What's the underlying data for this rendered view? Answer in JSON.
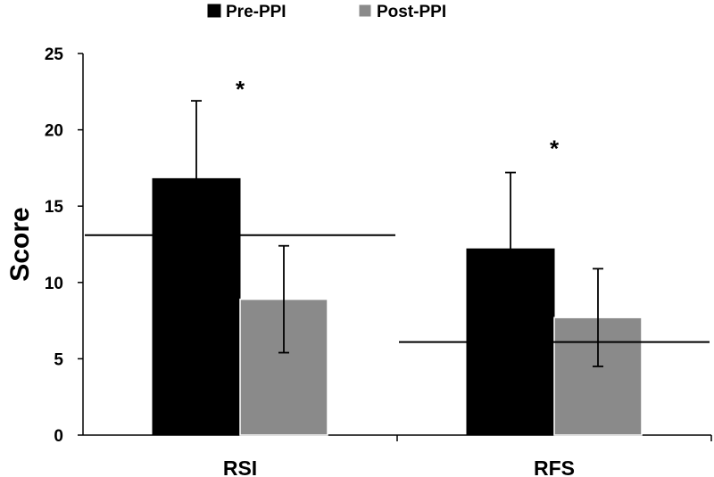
{
  "chart_data": {
    "type": "bar",
    "categories": [
      "RSI",
      "RFS"
    ],
    "series": [
      {
        "name": "Pre-PPI",
        "color": "#000000",
        "values": [
          16.8,
          12.2
        ],
        "errors": [
          5.1,
          5.0
        ]
      },
      {
        "name": "Post-PPI",
        "color": "#8a8a8a",
        "values": [
          8.9,
          7.7
        ],
        "errors": [
          3.5,
          3.2
        ]
      }
    ],
    "ylabel": "Score",
    "xlabel": "",
    "ylim": [
      0,
      25
    ],
    "yticks": [
      0,
      5,
      10,
      15,
      20,
      25
    ],
    "reference_lines": [
      {
        "category": "RSI",
        "value": 13.1
      },
      {
        "category": "RFS",
        "value": 6.1
      }
    ],
    "annotations": [
      {
        "category": "RSI",
        "text": "*",
        "value": 23.2
      },
      {
        "category": "RFS",
        "text": "*",
        "value": 19.3
      }
    ],
    "legend_position": "top-center",
    "grid": false
  }
}
